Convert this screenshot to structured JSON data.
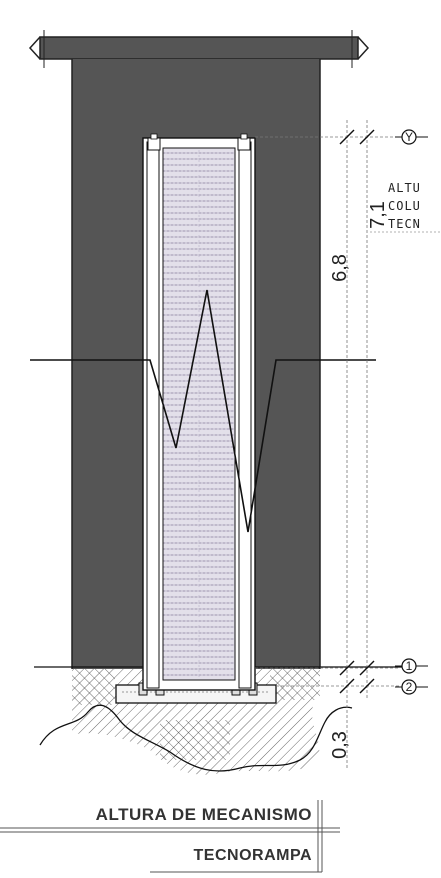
{
  "dimensions": {
    "total": "7,1",
    "upper": "6,8",
    "lower": "0,3"
  },
  "references": {
    "top": "Y",
    "level_1": "1",
    "level_2": "2"
  },
  "side_note": {
    "line1": "ALTU",
    "line2": "COLU",
    "line3": "TECN"
  },
  "title_block": {
    "title": "ALTURA DE MECANISMO",
    "subtitle": "TECNORAMPA"
  },
  "colors": {
    "wall": "#555555",
    "ground_fill": "#f2f2f2",
    "column_fill": "#d9d4e0",
    "line": "#111111"
  }
}
